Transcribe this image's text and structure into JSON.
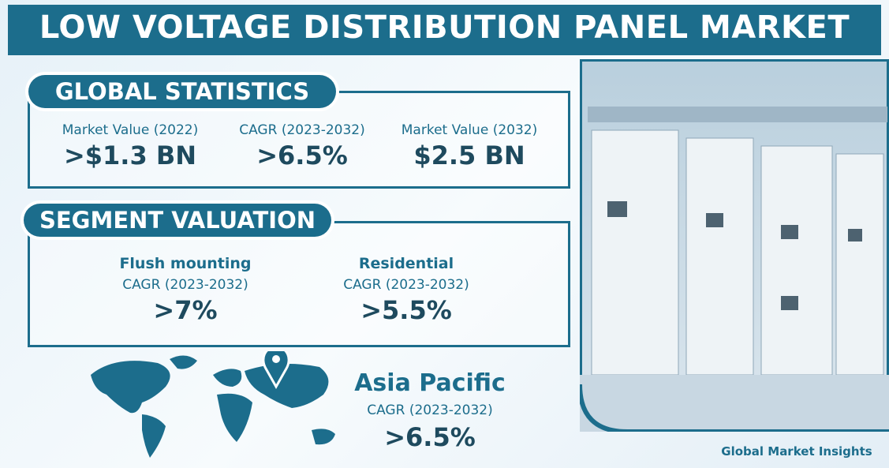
{
  "title": "LOW VOLTAGE DISTRIBUTION PANEL MARKET",
  "global_statistics": {
    "heading": "GLOBAL STATISTICS",
    "items": [
      {
        "label": "Market Value (2022)",
        "value": ">$1.3 BN"
      },
      {
        "label": "CAGR (2023-2032)",
        "value": ">6.5%"
      },
      {
        "label": "Market Value (2032)",
        "value": "$2.5 BN"
      }
    ]
  },
  "segment_valuation": {
    "heading": "SEGMENT VALUATION",
    "items": [
      {
        "name": "Flush mounting",
        "label": "CAGR (2023-2032)",
        "value": ">7%"
      },
      {
        "name": "Residential",
        "label": "CAGR (2023-2032)",
        "value": ">5.5%"
      }
    ]
  },
  "region": {
    "name": "Asia Pacific",
    "label": "CAGR (2023-2032)",
    "value": ">6.5%"
  },
  "logo": "Global Market Insights"
}
